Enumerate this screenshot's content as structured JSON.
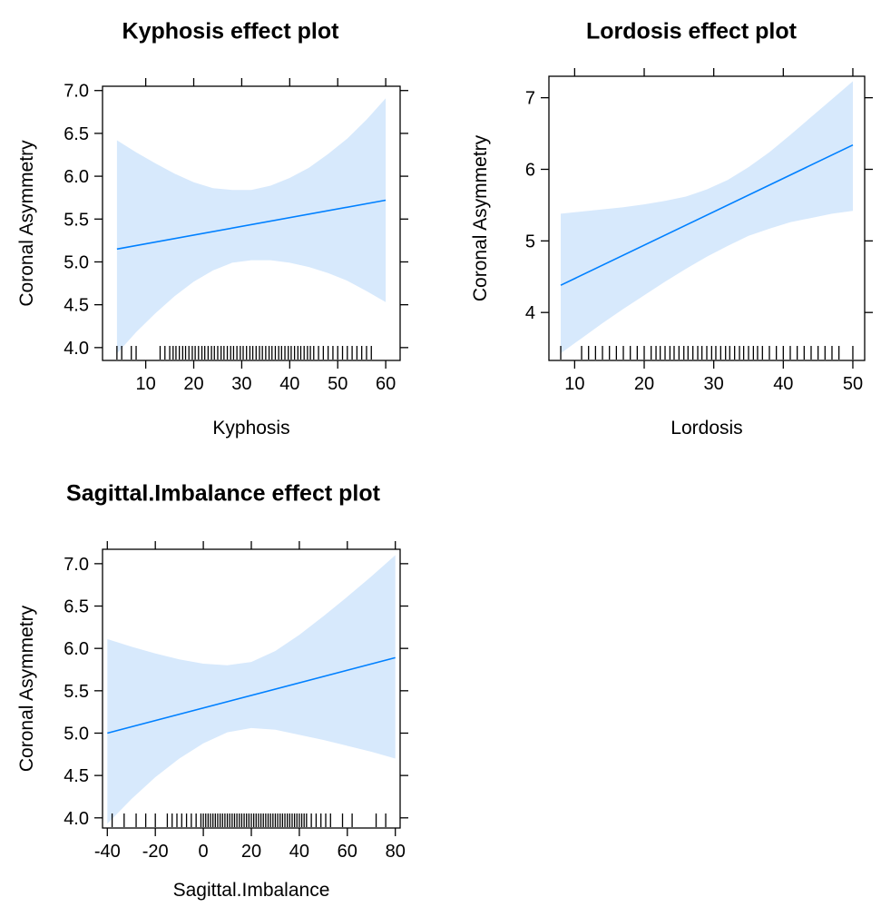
{
  "chart_data": [
    {
      "type": "line",
      "title": "Kyphosis effect plot",
      "xlabel": "Kyphosis",
      "ylabel": "Coronal Asymmetry",
      "xlim": [
        1,
        63
      ],
      "ylim": [
        3.85,
        7.05
      ],
      "x_ticks": [
        10,
        20,
        30,
        40,
        50,
        60
      ],
      "x_tick_labels": [
        "10",
        "20",
        "30",
        "40",
        "50",
        "60"
      ],
      "y_ticks": [
        4.0,
        4.5,
        5.0,
        5.5,
        6.0,
        6.5,
        7.0
      ],
      "y_tick_labels": [
        "4.0",
        "4.5",
        "5.0",
        "5.5",
        "6.0",
        "6.5",
        "7.0"
      ],
      "line_color": "#0080ff",
      "band_color": "#d7e9fc",
      "series": [
        {
          "x": [
            4,
            60
          ],
          "y": [
            5.15,
            5.72
          ]
        }
      ],
      "band": {
        "x": [
          4,
          8,
          12,
          16,
          20,
          24,
          28,
          32,
          36,
          40,
          44,
          48,
          52,
          56,
          60
        ],
        "lower": [
          3.93,
          4.18,
          4.4,
          4.6,
          4.77,
          4.9,
          4.99,
          5.02,
          5.02,
          4.99,
          4.94,
          4.87,
          4.78,
          4.66,
          4.53
        ],
        "upper": [
          6.42,
          6.28,
          6.15,
          6.03,
          5.93,
          5.86,
          5.84,
          5.84,
          5.89,
          5.98,
          6.1,
          6.26,
          6.44,
          6.66,
          6.91
        ]
      },
      "rug": [
        4,
        5,
        7,
        8,
        13,
        14,
        15,
        15.7,
        16.3,
        17,
        17.7,
        18.3,
        19,
        19.7,
        20.3,
        21,
        21.7,
        22.3,
        23,
        23.7,
        24.3,
        25,
        25.7,
        26.3,
        27,
        27.7,
        28.3,
        29,
        29.7,
        30.3,
        31,
        31.7,
        32.3,
        33,
        33.7,
        34.3,
        35,
        35.7,
        36.3,
        37,
        37.7,
        38.3,
        39,
        39.7,
        40.3,
        41,
        41.7,
        42.3,
        43,
        43.7,
        44.3,
        45,
        46,
        47,
        48,
        49,
        50,
        51,
        52,
        53,
        54,
        55,
        56,
        57
      ]
    },
    {
      "type": "line",
      "title": "Lordosis effect plot",
      "xlabel": "Lordosis",
      "ylabel": "Coronal Asymmetry",
      "xlim": [
        6.3,
        51.7
      ],
      "ylim": [
        3.33,
        7.3
      ],
      "x_ticks": [
        10,
        20,
        30,
        40,
        50
      ],
      "x_tick_labels": [
        "10",
        "20",
        "30",
        "40",
        "50"
      ],
      "y_ticks": [
        4,
        5,
        6,
        7
      ],
      "y_tick_labels": [
        "4",
        "5",
        "6",
        "7"
      ],
      "line_color": "#0080ff",
      "band_color": "#d7e9fc",
      "series": [
        {
          "x": [
            8,
            50
          ],
          "y": [
            4.38,
            6.34
          ]
        }
      ],
      "band": {
        "x": [
          8,
          11,
          14,
          17,
          20,
          23,
          26,
          29,
          32,
          35,
          38,
          41,
          44,
          47,
          50
        ],
        "lower": [
          3.43,
          3.64,
          3.85,
          4.05,
          4.24,
          4.43,
          4.61,
          4.78,
          4.93,
          5.07,
          5.17,
          5.26,
          5.32,
          5.38,
          5.42
        ],
        "upper": [
          5.38,
          5.41,
          5.44,
          5.47,
          5.51,
          5.56,
          5.62,
          5.72,
          5.85,
          6.03,
          6.24,
          6.48,
          6.73,
          6.98,
          7.23
        ]
      },
      "rug": [
        8,
        11,
        12,
        13,
        14,
        15,
        16,
        17,
        18,
        19,
        20,
        21,
        21.7,
        22.3,
        23,
        23.7,
        24.3,
        25,
        25.7,
        26.3,
        27,
        27.7,
        28.3,
        29,
        29.7,
        30.3,
        31,
        31.7,
        32.3,
        33,
        33.7,
        34.3,
        35,
        35.7,
        36.3,
        37,
        38,
        39,
        40,
        41,
        42,
        43,
        44,
        45,
        46,
        47,
        48,
        50
      ]
    },
    {
      "type": "line",
      "title": "Sagittal.Imbalance effect plot",
      "xlabel": "Sagittal.Imbalance",
      "ylabel": "Coronal Asymmetry",
      "xlim": [
        -42,
        82
      ],
      "ylim": [
        3.88,
        7.17
      ],
      "x_ticks": [
        -40,
        -20,
        0,
        20,
        40,
        60,
        80
      ],
      "x_tick_labels": [
        "-40",
        "-20",
        "0",
        "20",
        "40",
        "60",
        "80"
      ],
      "y_ticks": [
        4.0,
        4.5,
        5.0,
        5.5,
        6.0,
        6.5,
        7.0
      ],
      "y_tick_labels": [
        "4.0",
        "4.5",
        "5.0",
        "5.5",
        "6.0",
        "6.5",
        "7.0"
      ],
      "line_color": "#0080ff",
      "band_color": "#d7e9fc",
      "series": [
        {
          "x": [
            -40,
            80
          ],
          "y": [
            5.0,
            5.89
          ]
        }
      ],
      "band": {
        "x": [
          -40,
          -30,
          -20,
          -10,
          0,
          10,
          20,
          30,
          40,
          50,
          60,
          70,
          80
        ],
        "lower": [
          3.93,
          4.22,
          4.48,
          4.7,
          4.88,
          5.01,
          5.06,
          5.04,
          4.98,
          4.92,
          4.85,
          4.78,
          4.7
        ],
        "upper": [
          6.11,
          6.02,
          5.94,
          5.87,
          5.82,
          5.8,
          5.84,
          5.97,
          6.16,
          6.38,
          6.61,
          6.85,
          7.1
        ]
      },
      "rug": [
        -38,
        -33,
        -28,
        -24,
        -20,
        -15,
        -13,
        -11,
        -9,
        -7,
        -5,
        -3,
        -1,
        0,
        1,
        2,
        3,
        4,
        5,
        6,
        7,
        8,
        9,
        10,
        11,
        12,
        13,
        14,
        15,
        16,
        17,
        18,
        19,
        20,
        21,
        22,
        23,
        24,
        25,
        26,
        27,
        28,
        29,
        30,
        31,
        32,
        33,
        34,
        35,
        36,
        37,
        38,
        39,
        40,
        41,
        42,
        43,
        45,
        47,
        49,
        51,
        53,
        58,
        62,
        72,
        76
      ]
    }
  ]
}
